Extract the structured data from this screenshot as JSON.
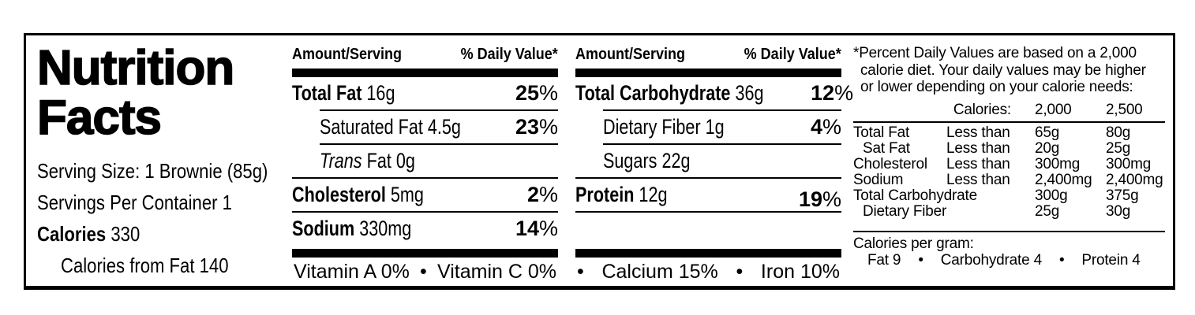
{
  "percent_sign": "%",
  "bullet": "•",
  "title": {
    "line1": "Nutrition",
    "line2": "Facts"
  },
  "serving": {
    "size": "Serving Size: 1 Brownie (85g)",
    "per_container": "Servings Per Container 1",
    "calories_label": "Calories",
    "calories_value": "330",
    "calories_from_fat": "Calories from Fat 140"
  },
  "fat_panel": {
    "header_amount": "Amount/Serving",
    "header_dv": "% Daily Value*",
    "total_fat": {
      "name": "Total Fat",
      "amount": "16g",
      "dv": "25"
    },
    "saturated_fat": {
      "name": "Saturated Fat",
      "amount": "4.5g",
      "dv": "23"
    },
    "trans_fat": {
      "name_italic": "Trans",
      "name": "Fat",
      "amount": "0g"
    },
    "cholesterol": {
      "name": "Cholesterol",
      "amount": "5mg",
      "dv": "2"
    },
    "sodium": {
      "name": "Sodium",
      "amount": "330mg",
      "dv": "14"
    },
    "micros": {
      "vitamin_a": "Vitamin A 0%",
      "vitamin_c": "Vitamin C 0%"
    }
  },
  "carb_panel": {
    "header_amount": "Amount/Serving",
    "header_dv": "% Daily Value*",
    "total_carb": {
      "name": "Total Carbohydrate",
      "amount": "36g",
      "dv": "12"
    },
    "dietary_fiber": {
      "name": "Dietary Fiber",
      "amount": "1g",
      "dv": "4"
    },
    "sugars": {
      "name": "Sugars",
      "amount": "22g"
    },
    "protein": {
      "name": "Protein",
      "amount": "12g",
      "dv": "19"
    },
    "micros": {
      "calcium": "Calcium 15%",
      "iron": "Iron 10%"
    }
  },
  "footnote": {
    "lines": [
      "*Percent Daily Values are based on a 2,000",
      "calorie diet. Your daily values may be higher",
      "or lower depending on your calorie needs:"
    ],
    "calories_header": "Calories:",
    "col_2000": "2,000",
    "col_2500": "2,500",
    "table": [
      {
        "label": "Total Fat",
        "qualifier": "Less than",
        "v2000": "65g",
        "v2500": "80g"
      },
      {
        "label": "Sat Fat",
        "qualifier": "Less than",
        "v2000": "20g",
        "v2500": "25g"
      },
      {
        "label": "Cholesterol",
        "qualifier": "Less than",
        "v2000": "300mg",
        "v2500": "300mg"
      },
      {
        "label": "Sodium",
        "qualifier": "Less than",
        "v2000": "2,400mg",
        "v2500": "2,400mg"
      },
      {
        "label": "Total Carbohydrate",
        "qualifier": "",
        "v2000": "300g",
        "v2500": "375g"
      },
      {
        "label": "Dietary Fiber",
        "qualifier": "",
        "v2000": "25g",
        "v2500": "30g"
      }
    ],
    "calories_per_gram": {
      "label": "Calories per gram:",
      "fat": "Fat 9",
      "carbohydrate": "Carbohydrate 4",
      "protein": "Protein 4"
    }
  }
}
